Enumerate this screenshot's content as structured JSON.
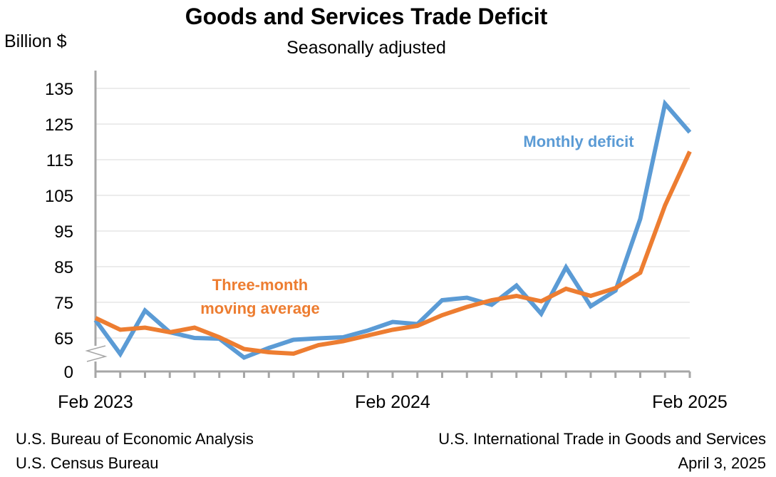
{
  "chart_data": {
    "type": "line",
    "title": "Goods and Services Trade Deficit",
    "subtitle": "Seasonally adjusted",
    "ylabel": "Billion $",
    "y_ticks": [
      "135",
      "125",
      "115",
      "105",
      "95",
      "85",
      "75",
      "65",
      "0"
    ],
    "y_tick_values": [
      135,
      125,
      115,
      105,
      95,
      85,
      75,
      65
    ],
    "ylim": [
      61,
      135
    ],
    "axis_break": true,
    "x_tick_labels": [
      "Feb 2023",
      "Feb 2024",
      "Feb 2025"
    ],
    "x": [
      "2023-02",
      "2023-03",
      "2023-04",
      "2023-05",
      "2023-06",
      "2023-07",
      "2023-08",
      "2023-09",
      "2023-10",
      "2023-11",
      "2023-12",
      "2024-01",
      "2024-02",
      "2024-03",
      "2024-04",
      "2024-05",
      "2024-06",
      "2024-07",
      "2024-08",
      "2024-09",
      "2024-10",
      "2024-11",
      "2024-12",
      "2025-01",
      "2025-02"
    ],
    "series": [
      {
        "name": "Monthly deficit",
        "color": "#5b9bd5",
        "values": [
          70,
          60.5,
          72.7,
          66.6,
          65,
          64.8,
          59.5,
          62.2,
          64.5,
          64.9,
          65.2,
          67.1,
          69.5,
          68.9,
          75.6,
          76.3,
          74.3,
          79.7,
          71.8,
          84.8,
          73.9,
          78.3,
          98.4,
          130.7,
          122.7
        ]
      },
      {
        "name": "Three-month moving average",
        "color": "#ed7d31",
        "values": [
          70.6,
          67.3,
          67.9,
          66.6,
          67.9,
          65.2,
          61.9,
          61,
          60.6,
          63,
          64.1,
          65.7,
          67.3,
          68.4,
          71.4,
          73.7,
          75.6,
          76.8,
          75.3,
          78.8,
          76.8,
          79,
          83.3,
          102.2,
          117.3
        ]
      }
    ],
    "series_labels": {
      "monthly": "Monthly deficit",
      "average_line1": "Three-month",
      "average_line2": "moving average"
    },
    "legend": "inline labels"
  },
  "footer": {
    "left_line1": "U.S. Bureau of Economic Analysis",
    "left_line2": "U.S. Census Bureau",
    "right_line1": "U.S. International Trade in Goods and Services",
    "right_line2": "April 3, 2025"
  },
  "colors": {
    "axis": "#a6a6a6",
    "grid": "#d9d9d9"
  }
}
